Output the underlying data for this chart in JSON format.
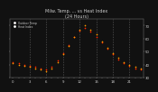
{
  "title": "Milw. Temp. ... vs Heat Index\n(24 Hours)",
  "background_color": "#111111",
  "plot_bg": "#111111",
  "grid_color": "#555555",
  "hours": [
    0,
    1,
    2,
    3,
    4,
    5,
    6,
    7,
    8,
    9,
    10,
    11,
    12,
    13,
    14,
    15,
    16,
    17,
    18,
    19,
    20,
    21,
    22,
    23
  ],
  "temp": [
    42,
    41,
    40,
    39,
    38,
    37,
    36,
    38,
    43,
    49,
    55,
    61,
    66,
    68,
    65,
    61,
    57,
    52,
    48,
    44,
    41,
    39,
    37,
    36
  ],
  "heat_index": [
    41,
    40,
    39,
    38,
    37,
    36,
    35,
    37,
    42,
    48,
    54,
    61,
    67,
    70,
    67,
    63,
    58,
    53,
    49,
    45,
    42,
    40,
    38,
    37
  ],
  "temp_color": "#ff2200",
  "heat_color": "#ff9900",
  "ylim": [
    30,
    75
  ],
  "ytick_vals": [
    30,
    40,
    50,
    60,
    70
  ],
  "vgrid_positions": [
    3,
    6,
    9,
    12,
    15,
    18,
    21
  ],
  "legend_labels": [
    "Outdoor Temp",
    "Heat Index"
  ],
  "tick_color": "#cccccc",
  "label_color": "#cccccc",
  "title_color": "#cccccc",
  "title_fontsize": 3.5,
  "tick_fontsize": 2.8
}
